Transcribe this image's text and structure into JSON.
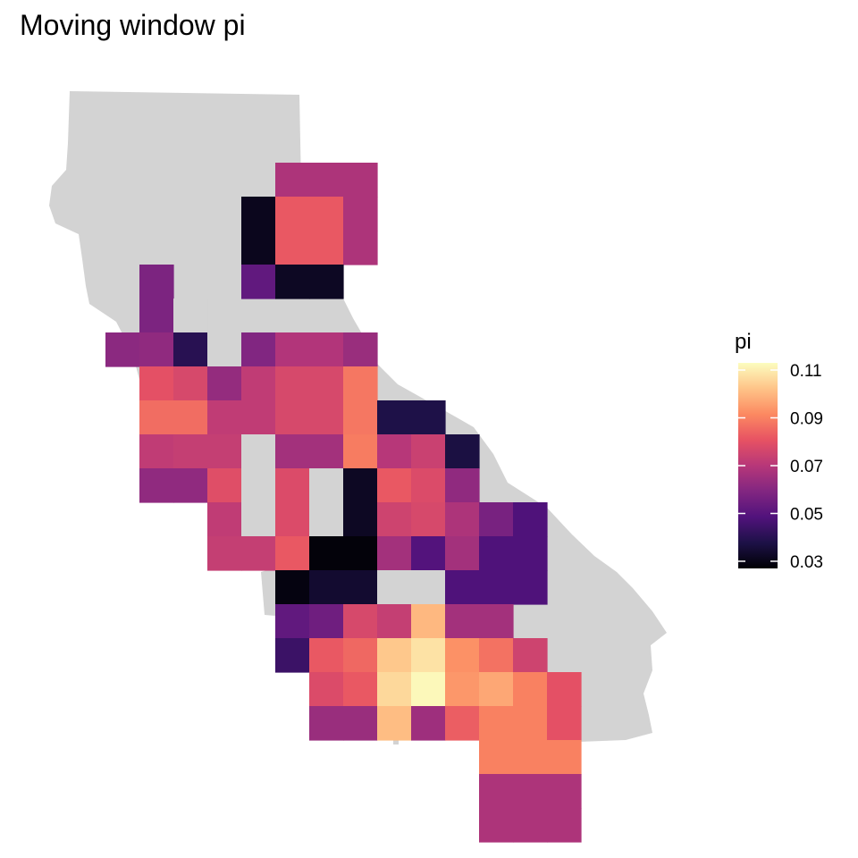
{
  "chart_data": {
    "type": "heatmap",
    "title": "Moving window pi",
    "xlabel": "",
    "ylabel": "",
    "grid": false,
    "legend": {
      "title": "pi",
      "placement": "right",
      "ticks": [
        "0.03",
        "0.05",
        "0.07",
        "0.09",
        "0.11"
      ],
      "range": [
        0.027,
        0.113
      ]
    },
    "colorscale": "magma",
    "missing_color": "#d3d3d3",
    "basemap_color": "#d3d3d3",
    "cells": [
      {
        "col": 4,
        "row": 0,
        "value": 0.068
      },
      {
        "col": 5,
        "row": 0,
        "value": 0.068
      },
      {
        "col": 6,
        "row": 0,
        "value": 0.068
      },
      {
        "col": 3,
        "row": 1,
        "value": 0.031
      },
      {
        "col": 4,
        "row": 1,
        "value": 0.082
      },
      {
        "col": 5,
        "row": 1,
        "value": 0.082
      },
      {
        "col": 6,
        "row": 1,
        "value": 0.068
      },
      {
        "col": 3,
        "row": 2,
        "value": 0.031
      },
      {
        "col": 4,
        "row": 2,
        "value": 0.082
      },
      {
        "col": 5,
        "row": 2,
        "value": 0.082
      },
      {
        "col": 6,
        "row": 2,
        "value": 0.068
      },
      {
        "col": 0,
        "row": 3,
        "value": 0.058
      },
      {
        "col": 3,
        "row": 3,
        "value": 0.052
      },
      {
        "col": 4,
        "row": 3,
        "value": 0.032
      },
      {
        "col": 5,
        "row": 3,
        "value": 0.032
      },
      {
        "col": 0,
        "row": 4,
        "value": 0.058
      },
      {
        "col": 1,
        "row": 4,
        "value": null
      },
      {
        "col": -1,
        "row": 5,
        "value": 0.061
      },
      {
        "col": 0,
        "row": 5,
        "value": 0.062
      },
      {
        "col": 1,
        "row": 5,
        "value": 0.04
      },
      {
        "col": 2,
        "row": 5,
        "value": null
      },
      {
        "col": 3,
        "row": 5,
        "value": 0.059
      },
      {
        "col": 4,
        "row": 5,
        "value": 0.069
      },
      {
        "col": 5,
        "row": 5,
        "value": 0.069
      },
      {
        "col": 6,
        "row": 5,
        "value": 0.064
      },
      {
        "col": 0,
        "row": 6,
        "value": 0.08
      },
      {
        "col": 1,
        "row": 6,
        "value": 0.077
      },
      {
        "col": 2,
        "row": 6,
        "value": 0.063
      },
      {
        "col": 3,
        "row": 6,
        "value": 0.072
      },
      {
        "col": 4,
        "row": 6,
        "value": 0.077
      },
      {
        "col": 5,
        "row": 6,
        "value": 0.077
      },
      {
        "col": 6,
        "row": 6,
        "value": 0.088
      },
      {
        "col": 0,
        "row": 7,
        "value": 0.086
      },
      {
        "col": 1,
        "row": 7,
        "value": 0.086
      },
      {
        "col": 2,
        "row": 7,
        "value": 0.072
      },
      {
        "col": 3,
        "row": 7,
        "value": 0.072
      },
      {
        "col": 4,
        "row": 7,
        "value": 0.077
      },
      {
        "col": 5,
        "row": 7,
        "value": 0.077
      },
      {
        "col": 6,
        "row": 7,
        "value": 0.088
      },
      {
        "col": 7,
        "row": 7,
        "value": 0.038
      },
      {
        "col": 8,
        "row": 7,
        "value": 0.038
      },
      {
        "col": 0,
        "row": 8,
        "value": 0.072
      },
      {
        "col": 1,
        "row": 8,
        "value": 0.073
      },
      {
        "col": 2,
        "row": 8,
        "value": 0.073
      },
      {
        "col": 3,
        "row": 8,
        "value": null
      },
      {
        "col": 4,
        "row": 8,
        "value": 0.066
      },
      {
        "col": 5,
        "row": 8,
        "value": 0.066
      },
      {
        "col": 6,
        "row": 8,
        "value": 0.089
      },
      {
        "col": 7,
        "row": 8,
        "value": 0.07
      },
      {
        "col": 8,
        "row": 8,
        "value": 0.074
      },
      {
        "col": 9,
        "row": 8,
        "value": 0.037
      },
      {
        "col": 0,
        "row": 9,
        "value": 0.062
      },
      {
        "col": 1,
        "row": 9,
        "value": 0.062
      },
      {
        "col": 2,
        "row": 9,
        "value": 0.079
      },
      {
        "col": 3,
        "row": 9,
        "value": null
      },
      {
        "col": 4,
        "row": 9,
        "value": 0.078
      },
      {
        "col": 5,
        "row": 9,
        "value": null
      },
      {
        "col": 6,
        "row": 9,
        "value": 0.032
      },
      {
        "col": 7,
        "row": 9,
        "value": 0.082
      },
      {
        "col": 8,
        "row": 9,
        "value": 0.078
      },
      {
        "col": 9,
        "row": 9,
        "value": 0.062
      },
      {
        "col": 2,
        "row": 10,
        "value": 0.072
      },
      {
        "col": 3,
        "row": 10,
        "value": null
      },
      {
        "col": 4,
        "row": 10,
        "value": 0.078
      },
      {
        "col": 5,
        "row": 10,
        "value": null
      },
      {
        "col": 6,
        "row": 10,
        "value": 0.032
      },
      {
        "col": 7,
        "row": 10,
        "value": 0.075
      },
      {
        "col": 8,
        "row": 10,
        "value": 0.077
      },
      {
        "col": 9,
        "row": 10,
        "value": 0.068
      },
      {
        "col": 10,
        "row": 10,
        "value": 0.057
      },
      {
        "col": 11,
        "row": 10,
        "value": 0.048
      },
      {
        "col": 2,
        "row": 11,
        "value": 0.073
      },
      {
        "col": 3,
        "row": 11,
        "value": 0.073
      },
      {
        "col": 4,
        "row": 11,
        "value": 0.082
      },
      {
        "col": 5,
        "row": 11,
        "value": 0.028
      },
      {
        "col": 6,
        "row": 11,
        "value": 0.028
      },
      {
        "col": 7,
        "row": 11,
        "value": 0.066
      },
      {
        "col": 8,
        "row": 11,
        "value": 0.049
      },
      {
        "col": 9,
        "row": 11,
        "value": 0.066
      },
      {
        "col": 10,
        "row": 11,
        "value": 0.048
      },
      {
        "col": 11,
        "row": 11,
        "value": 0.048
      },
      {
        "col": 4,
        "row": 12,
        "value": 0.029
      },
      {
        "col": 5,
        "row": 12,
        "value": 0.034
      },
      {
        "col": 6,
        "row": 12,
        "value": 0.034
      },
      {
        "col": 7,
        "row": 12,
        "value": null
      },
      {
        "col": 8,
        "row": 12,
        "value": null
      },
      {
        "col": 9,
        "row": 12,
        "value": 0.048
      },
      {
        "col": 10,
        "row": 12,
        "value": 0.048
      },
      {
        "col": 11,
        "row": 12,
        "value": 0.048
      },
      {
        "col": 4,
        "row": 13,
        "value": 0.052
      },
      {
        "col": 5,
        "row": 13,
        "value": 0.055
      },
      {
        "col": 6,
        "row": 13,
        "value": 0.077
      },
      {
        "col": 7,
        "row": 13,
        "value": 0.073
      },
      {
        "col": 8,
        "row": 13,
        "value": 0.1
      },
      {
        "col": 9,
        "row": 13,
        "value": 0.066
      },
      {
        "col": 10,
        "row": 13,
        "value": 0.066
      },
      {
        "col": 4,
        "row": 14,
        "value": 0.044
      },
      {
        "col": 5,
        "row": 14,
        "value": 0.082
      },
      {
        "col": 6,
        "row": 14,
        "value": 0.085
      },
      {
        "col": 7,
        "row": 14,
        "value": 0.103
      },
      {
        "col": 8,
        "row": 14,
        "value": 0.108
      },
      {
        "col": 9,
        "row": 14,
        "value": 0.093
      },
      {
        "col": 10,
        "row": 14,
        "value": 0.087
      },
      {
        "col": 11,
        "row": 14,
        "value": 0.075
      },
      {
        "col": 5,
        "row": 15,
        "value": 0.078
      },
      {
        "col": 6,
        "row": 15,
        "value": 0.082
      },
      {
        "col": 7,
        "row": 15,
        "value": 0.106
      },
      {
        "col": 8,
        "row": 15,
        "value": 0.112
      },
      {
        "col": 9,
        "row": 15,
        "value": 0.094
      },
      {
        "col": 10,
        "row": 15,
        "value": 0.097
      },
      {
        "col": 11,
        "row": 15,
        "value": 0.09
      },
      {
        "col": 12,
        "row": 15,
        "value": 0.08
      },
      {
        "col": 5,
        "row": 16,
        "value": 0.064
      },
      {
        "col": 6,
        "row": 16,
        "value": 0.064
      },
      {
        "col": 7,
        "row": 16,
        "value": 0.101
      },
      {
        "col": 8,
        "row": 16,
        "value": 0.065
      },
      {
        "col": 9,
        "row": 16,
        "value": 0.083
      },
      {
        "col": 10,
        "row": 16,
        "value": 0.09
      },
      {
        "col": 11,
        "row": 16,
        "value": 0.09
      },
      {
        "col": 12,
        "row": 16,
        "value": 0.08
      },
      {
        "col": 10,
        "row": 17,
        "value": 0.09
      },
      {
        "col": 11,
        "row": 17,
        "value": 0.09
      },
      {
        "col": 12,
        "row": 17,
        "value": 0.09
      },
      {
        "col": 10,
        "row": 18,
        "value": 0.068
      },
      {
        "col": 11,
        "row": 18,
        "value": 0.068
      },
      {
        "col": 12,
        "row": 18,
        "value": 0.068
      },
      {
        "col": 10,
        "row": 19,
        "value": 0.068
      },
      {
        "col": 11,
        "row": 19,
        "value": 0.068
      },
      {
        "col": 12,
        "row": 19,
        "value": 0.068
      }
    ]
  }
}
